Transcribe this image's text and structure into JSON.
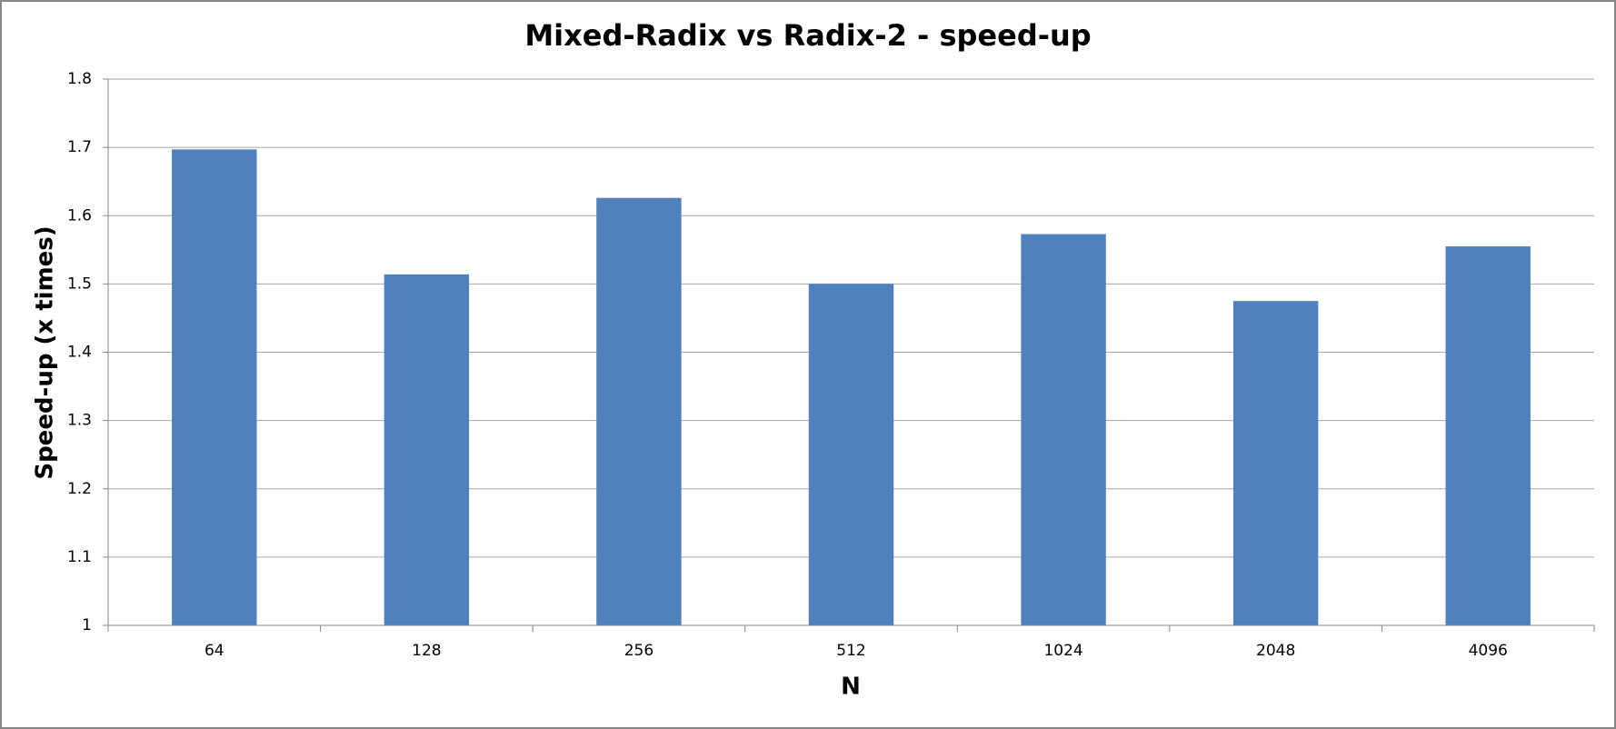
{
  "chart_data": {
    "type": "bar",
    "title": "Mixed-Radix vs Radix-2 - speed-up",
    "x_label": "N",
    "y_label": "Speed-up (x times)",
    "categories": [
      "64",
      "128",
      "256",
      "512",
      "1024",
      "2048",
      "4096"
    ],
    "values": [
      1.697,
      1.514,
      1.626,
      1.5,
      1.573,
      1.475,
      1.555
    ],
    "color": "#4f81bd",
    "ylim": [
      1,
      1.8
    ],
    "yticks": [
      1,
      1.1,
      1.2,
      1.3,
      1.4,
      1.5,
      1.6,
      1.7,
      1.8
    ],
    "grid": true
  }
}
